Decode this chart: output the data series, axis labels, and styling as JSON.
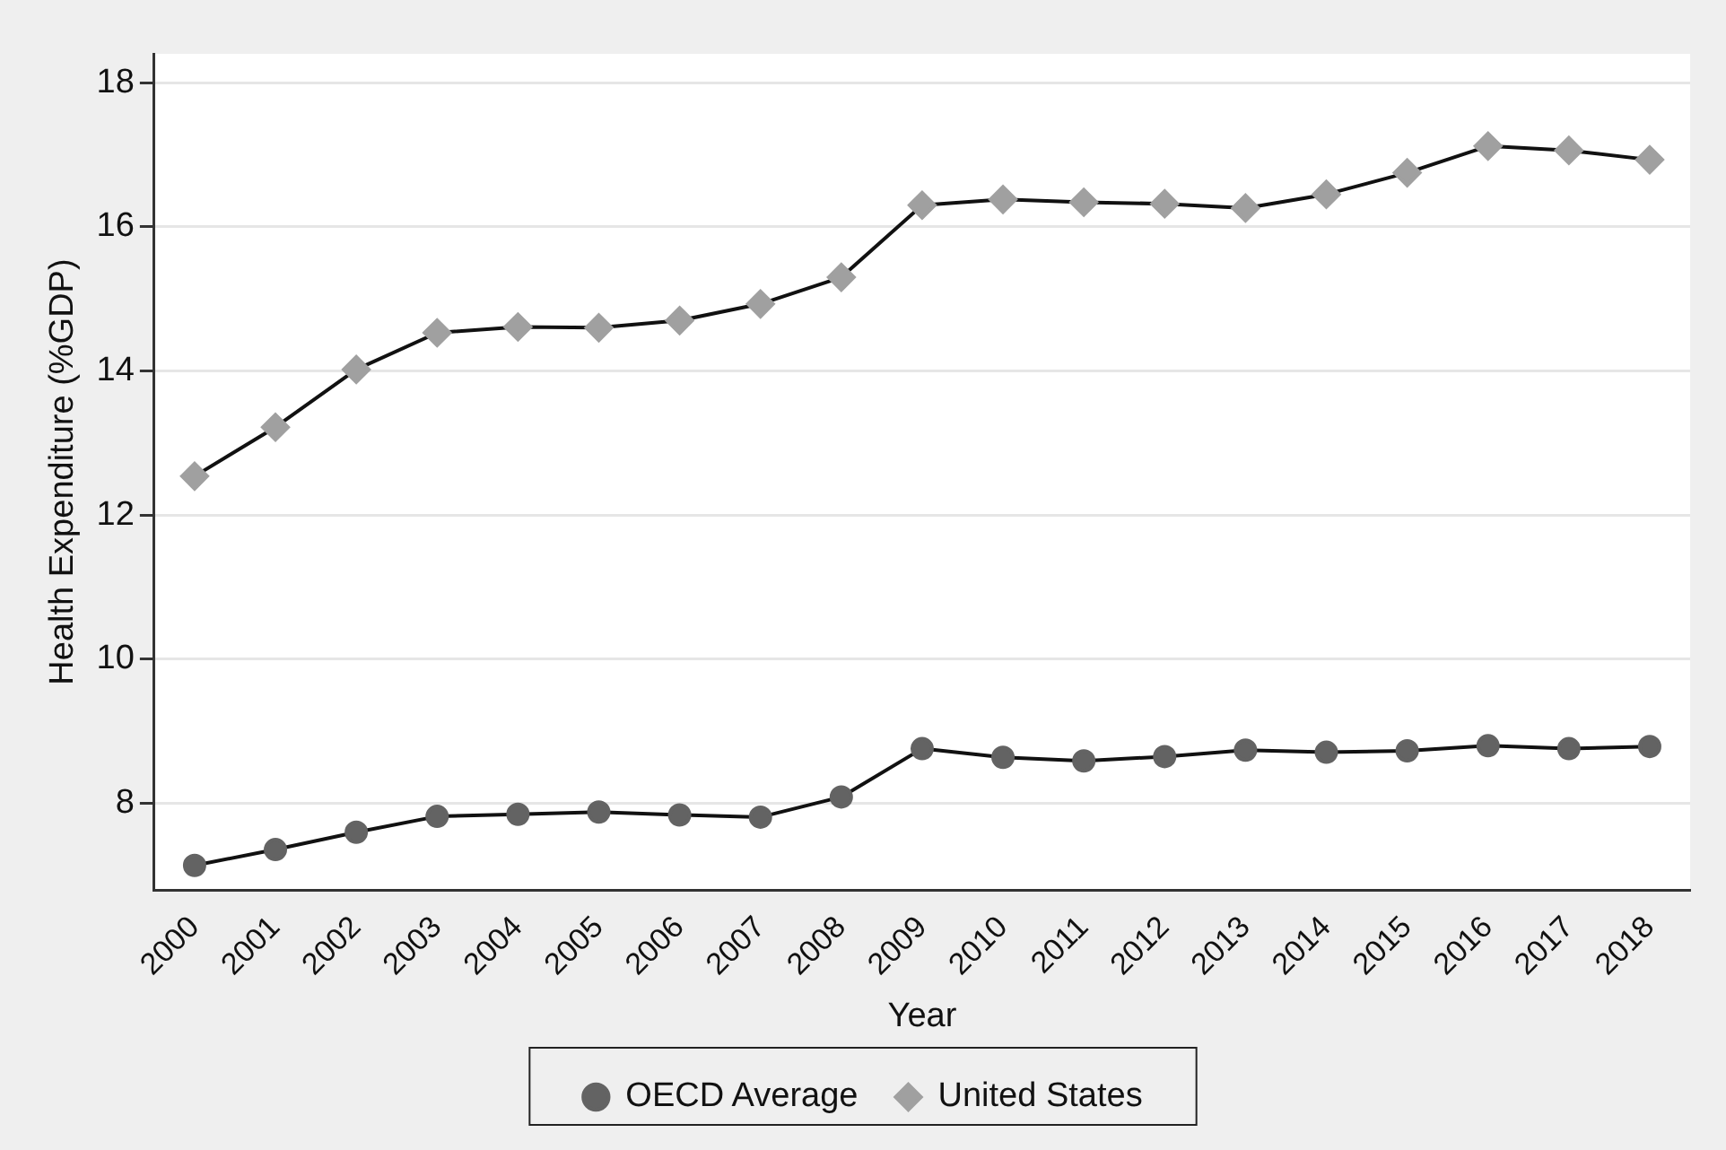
{
  "chart_data": {
    "type": "line",
    "xlabel": "Year",
    "ylabel": "Health Expenditure (%GDP)",
    "categories": [
      "2000",
      "2001",
      "2002",
      "2003",
      "2004",
      "2005",
      "2006",
      "2007",
      "2008",
      "2009",
      "2010",
      "2011",
      "2012",
      "2013",
      "2014",
      "2015",
      "2016",
      "2017",
      "2018"
    ],
    "series": [
      {
        "name": "OECD Average",
        "color": "#636363",
        "marker": "circle",
        "values": [
          7.14,
          7.36,
          7.6,
          7.82,
          7.85,
          7.88,
          7.84,
          7.81,
          8.09,
          8.76,
          8.64,
          8.59,
          8.65,
          8.74,
          8.71,
          8.73,
          8.8,
          8.76,
          8.79
        ]
      },
      {
        "name": "United States",
        "color": "#a0a0a0",
        "marker": "diamond",
        "values": [
          12.54,
          13.22,
          14.02,
          14.53,
          14.61,
          14.6,
          14.7,
          14.93,
          15.3,
          16.3,
          16.38,
          16.34,
          16.32,
          16.26,
          16.45,
          16.75,
          17.12,
          17.06,
          16.93
        ]
      }
    ],
    "ylim": [
      6.8,
      18.4
    ],
    "yticks": [
      8,
      10,
      12,
      14,
      16,
      18
    ],
    "grid": "y",
    "legend": "bottom",
    "line_style": "solid"
  }
}
